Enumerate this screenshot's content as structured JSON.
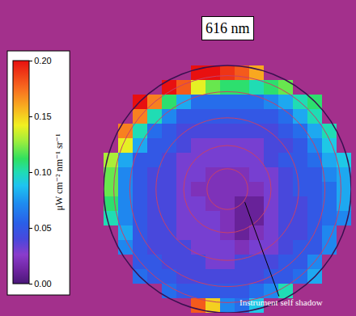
{
  "chart_data": {
    "type": "heatmap",
    "title": "616 nm",
    "annotations": [
      {
        "text": "Instrument self shadow"
      }
    ],
    "tick_labels": false,
    "z": [
      [
        null,
        null,
        null,
        null,
        null,
        null,
        0.2,
        0.2,
        0.19,
        0.18,
        0.16,
        null,
        null,
        null,
        null,
        null,
        null
      ],
      [
        null,
        null,
        null,
        null,
        0.2,
        0.18,
        0.14,
        0.12,
        0.11,
        0.11,
        0.1,
        0.11,
        0.12,
        null,
        null,
        null,
        null
      ],
      [
        null,
        null,
        0.2,
        0.17,
        0.11,
        0.08,
        0.06,
        0.06,
        0.06,
        0.06,
        0.06,
        0.07,
        0.08,
        0.1,
        0.11,
        null,
        null
      ],
      [
        null,
        null,
        0.17,
        0.1,
        0.07,
        0.05,
        0.05,
        0.05,
        0.05,
        0.05,
        0.05,
        0.05,
        0.06,
        0.08,
        0.1,
        null,
        null
      ],
      [
        null,
        0.17,
        0.1,
        0.06,
        0.05,
        0.04,
        0.04,
        0.04,
        0.04,
        0.04,
        0.04,
        0.04,
        0.05,
        0.06,
        0.08,
        0.1,
        null
      ],
      [
        null,
        0.14,
        0.08,
        0.05,
        0.05,
        0.04,
        0.03,
        0.03,
        0.03,
        0.03,
        0.03,
        0.04,
        0.04,
        0.05,
        0.07,
        0.09,
        null
      ],
      [
        0.13,
        0.08,
        0.05,
        0.05,
        0.04,
        0.03,
        0.03,
        0.03,
        0.03,
        0.03,
        0.03,
        0.04,
        0.05,
        0.05,
        0.06,
        0.08,
        0.09
      ],
      [
        0.12,
        0.07,
        0.05,
        0.04,
        0.04,
        0.03,
        0.03,
        0.02,
        0.02,
        0.02,
        0.03,
        0.03,
        0.04,
        0.05,
        0.05,
        0.07,
        0.08
      ],
      [
        0.12,
        0.07,
        0.05,
        0.04,
        0.04,
        0.03,
        0.02,
        0.02,
        0.02,
        0.02,
        0.02,
        0.03,
        0.04,
        0.05,
        0.05,
        0.06,
        0.08
      ],
      [
        0.11,
        0.07,
        0.05,
        0.04,
        0.04,
        0.03,
        0.03,
        0.02,
        0.02,
        0.01,
        0.01,
        0.03,
        0.04,
        0.04,
        0.05,
        0.06,
        0.08
      ],
      [
        0.1,
        0.07,
        0.05,
        0.04,
        0.04,
        0.03,
        0.03,
        0.03,
        0.02,
        0.01,
        0.01,
        0.03,
        0.04,
        0.04,
        0.05,
        0.06,
        0.07
      ],
      [
        null,
        0.08,
        0.05,
        0.04,
        0.04,
        0.03,
        0.03,
        0.03,
        0.02,
        0.01,
        0.02,
        0.03,
        0.04,
        0.04,
        0.05,
        0.07,
        null
      ],
      [
        null,
        0.07,
        0.05,
        0.04,
        0.04,
        0.04,
        0.03,
        0.03,
        0.03,
        0.02,
        0.03,
        0.03,
        0.04,
        0.05,
        0.05,
        0.07,
        null
      ],
      [
        null,
        null,
        0.05,
        0.05,
        0.04,
        0.04,
        0.04,
        0.03,
        0.03,
        0.04,
        0.04,
        0.04,
        0.05,
        0.05,
        0.07,
        null,
        null
      ],
      [
        null,
        null,
        0.06,
        0.05,
        0.05,
        0.04,
        0.04,
        0.04,
        0.04,
        0.04,
        0.04,
        0.05,
        0.05,
        0.06,
        0.08,
        null,
        null
      ],
      [
        null,
        null,
        null,
        null,
        0.06,
        0.05,
        0.05,
        0.05,
        0.05,
        0.05,
        0.06,
        0.07,
        0.1,
        null,
        null,
        null,
        null
      ],
      [
        null,
        null,
        null,
        null,
        null,
        null,
        0.18,
        0.15,
        0.07,
        0.06,
        0.09,
        null,
        null,
        null,
        null,
        null,
        null
      ]
    ],
    "colorbar": {
      "title": "μW cm⁻² nm⁻¹ sr⁻¹",
      "range": [
        0,
        0.2
      ],
      "ticks": [
        {
          "value": 0,
          "label": "0.00"
        },
        {
          "value": 0.05,
          "label": "0.05"
        },
        {
          "value": 0.1,
          "label": "0.10"
        },
        {
          "value": 0.15,
          "label": "0.15"
        },
        {
          "value": 0.2,
          "label": "0.20"
        }
      ]
    }
  }
}
